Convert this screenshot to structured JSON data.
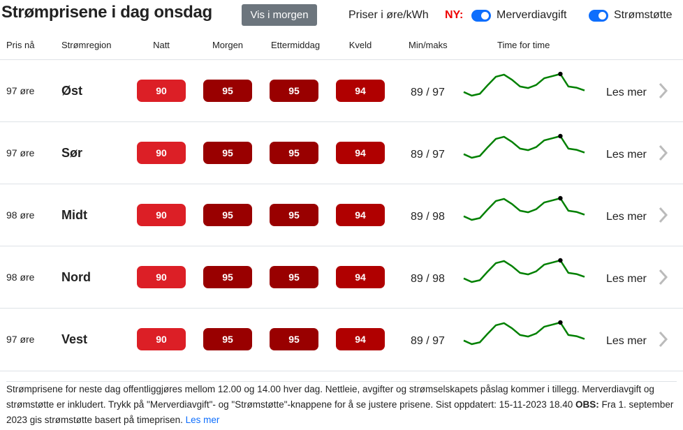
{
  "header": {
    "title": "Strømprisene i dag onsdag",
    "tomorrow_button": "Vis i morgen",
    "unit_label": "Priser i øre/kWh",
    "new_label": "NY:",
    "toggles": [
      {
        "label": "Merverdiavgift",
        "on": true
      },
      {
        "label": "Strømstøtte",
        "on": true
      }
    ]
  },
  "columns": [
    "Pris nå",
    "Strømregion",
    "Natt",
    "Morgen",
    "Ettermiddag",
    "Kveld",
    "Min/maks",
    "Time for time"
  ],
  "colors": {
    "natt": "#dc1f26",
    "morgen": "#990000",
    "ettermiddag": "#990000",
    "kveld": "#b00000",
    "sparkline": "#008000",
    "toggle": "#0d6efd"
  },
  "rows": [
    {
      "now": "97 øre",
      "region": "Øst",
      "natt": "90",
      "morgen": "95",
      "ettermiddag": "95",
      "kveld": "94",
      "minmax": "89 / 97",
      "more": "Les mer"
    },
    {
      "now": "97 øre",
      "region": "Sør",
      "natt": "90",
      "morgen": "95",
      "ettermiddag": "95",
      "kveld": "94",
      "minmax": "89 / 97",
      "more": "Les mer"
    },
    {
      "now": "98 øre",
      "region": "Midt",
      "natt": "90",
      "morgen": "95",
      "ettermiddag": "95",
      "kveld": "94",
      "minmax": "89 / 98",
      "more": "Les mer"
    },
    {
      "now": "98 øre",
      "region": "Nord",
      "natt": "90",
      "morgen": "95",
      "ettermiddag": "95",
      "kveld": "94",
      "minmax": "89 / 98",
      "more": "Les mer"
    },
    {
      "now": "97 øre",
      "region": "Vest",
      "natt": "90",
      "morgen": "95",
      "ettermiddag": "95",
      "kveld": "94",
      "minmax": "89 / 97",
      "more": "Les mer"
    }
  ],
  "sparkline": {
    "values": [
      90.5,
      89.3,
      89.9,
      92.8,
      95.5,
      96.2,
      94.5,
      92.3,
      91.8,
      92.8,
      95,
      95.7,
      96.4,
      92.3,
      91.9,
      91
    ],
    "current_index": 12
  },
  "footer": {
    "text": "Strømprisene for neste dag offentliggjøres mellom 12.00 og 14.00 hver dag. Nettleie, avgifter og strømselskapets påslag kommer i tillegg. Merverdiavgift og strømstøtte er inkludert. Trykk på \"Merverdiavgift\"- og \"Strømstøtte\"-knappene for å se justere prisene. Sist oppdatert: 15-11-2023 18.40 ",
    "obs": "OBS:",
    "text2": " Fra 1. september 2023 gis strømstøtte basert på timeprisen. ",
    "link": "Les mer"
  }
}
